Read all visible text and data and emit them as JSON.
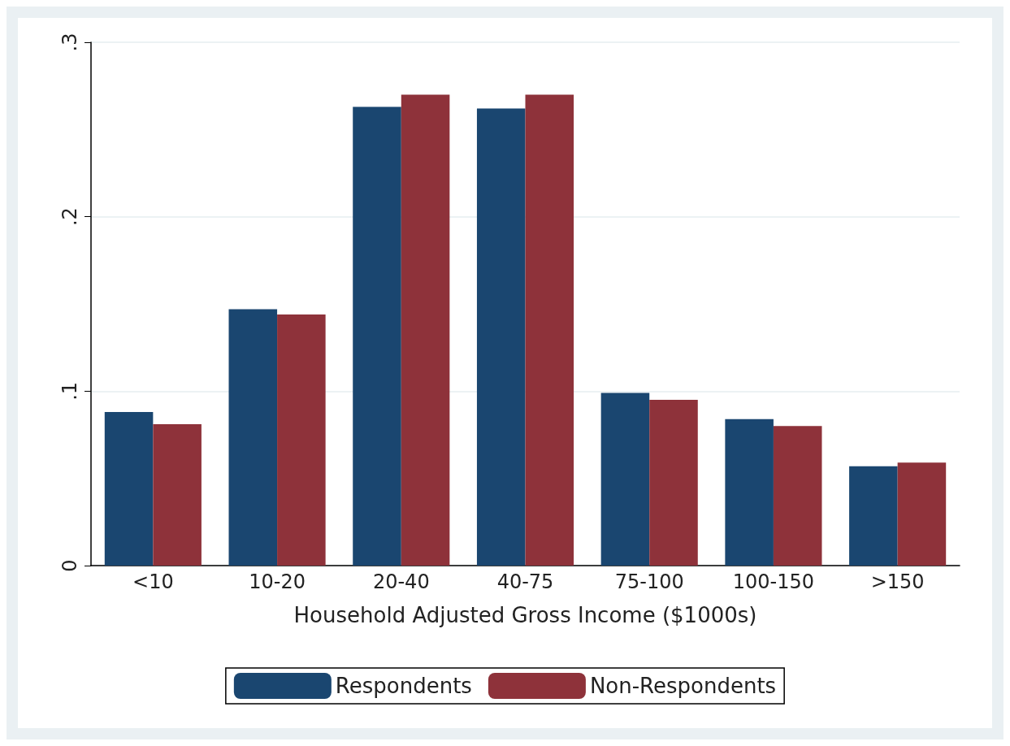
{
  "chart_data": {
    "type": "bar",
    "xlabel": "Household Adjusted Gross Income ($1000s)",
    "categories": [
      "<10",
      "10-20",
      "20-40",
      "40-75",
      "75-100",
      "100-150",
      ">150"
    ],
    "series": [
      {
        "name": "Respondents",
        "color": "#1a4670",
        "values": [
          0.088,
          0.147,
          0.263,
          0.262,
          0.099,
          0.084,
          0.057
        ]
      },
      {
        "name": "Non-Respondents",
        "color": "#8e323a",
        "values": [
          0.081,
          0.144,
          0.27,
          0.27,
          0.095,
          0.08,
          0.059
        ]
      }
    ],
    "ylim": [
      0,
      0.3
    ],
    "yticks": [
      0,
      {
        "value": 0.1,
        "label": ".1"
      },
      {
        "value": 0.2,
        "label": ".2"
      },
      {
        "value": 0.3,
        "label": ".3"
      }
    ],
    "grid": "y",
    "legend": "bottom"
  }
}
